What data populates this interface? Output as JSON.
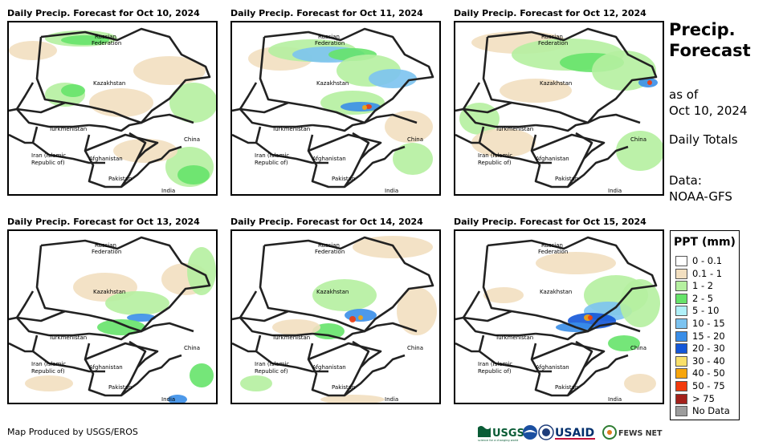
{
  "panels": [
    {
      "title": "Daily Precip. Forecast for Oct 10, 2024"
    },
    {
      "title": "Daily Precip. Forecast for Oct 11, 2024"
    },
    {
      "title": "Daily Precip. Forecast for Oct 12, 2024"
    },
    {
      "title": "Daily Precip. Forecast for Oct 13, 2024"
    },
    {
      "title": "Daily Precip. Forecast for Oct 14, 2024"
    },
    {
      "title": "Daily Precip. Forecast for Oct 15, 2024"
    }
  ],
  "map_labels": {
    "russia_line1": "Russian",
    "russia_line2": "Federation",
    "kazakhstan": "Kazakhstan",
    "turkmenistan": "Turkmenistan",
    "china": "China",
    "iran_line1": "Iran  (Islamic",
    "iran_line2": "Republic of)",
    "afghanistan": "Afghanistan",
    "pakistan": "Pakistan",
    "india": "India"
  },
  "side": {
    "title_line1": "Precip.",
    "title_line2": "Forecast",
    "as_of_line1": "as of",
    "as_of_line2": "Oct 10, 2024",
    "totals": "Daily Totals",
    "data_line1": "Data:",
    "data_line2": "NOAA-GFS"
  },
  "legend": {
    "title": "PPT (mm)",
    "items": [
      {
        "label": "0 - 0.1",
        "color": "#ffffff"
      },
      {
        "label": "0.1 - 1",
        "color": "#f2dfc0"
      },
      {
        "label": "1 - 2",
        "color": "#b5f0a0"
      },
      {
        "label": "2 - 5",
        "color": "#66e36a"
      },
      {
        "label": "5 - 10",
        "color": "#b0f0f8"
      },
      {
        "label": "10 - 15",
        "color": "#7cc3f0"
      },
      {
        "label": "15 - 20",
        "color": "#3a8ee8"
      },
      {
        "label": "20 - 30",
        "color": "#1457d8"
      },
      {
        "label": "30 - 40",
        "color": "#f9e06a"
      },
      {
        "label": "40 - 50",
        "color": "#f7a50b"
      },
      {
        "label": "50 - 75",
        "color": "#f23a0c"
      },
      {
        "label": "> 75",
        "color": "#a3211b"
      },
      {
        "label": "No Data",
        "color": "#9c9c9c"
      }
    ]
  },
  "footer": {
    "credit": "Map Produced by USGS/EROS"
  },
  "logos": {
    "usgs": "USGS",
    "usaid": "USAID",
    "fews": "FEWS NET"
  }
}
